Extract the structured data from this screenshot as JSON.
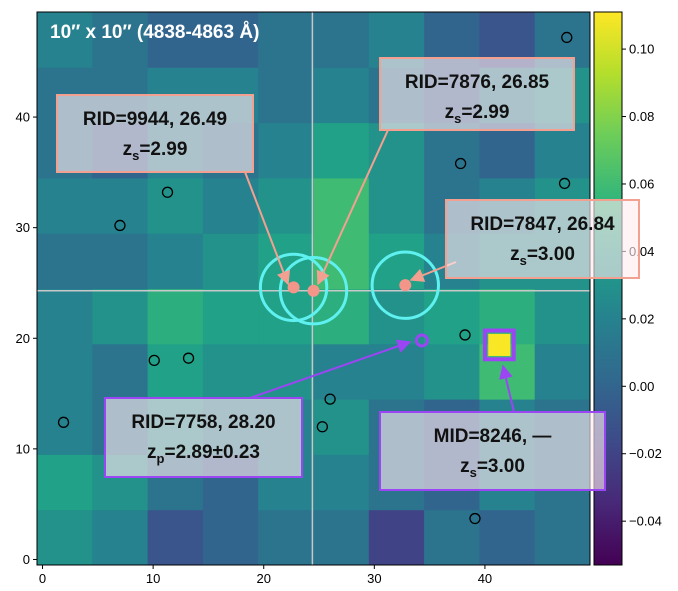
{
  "chart_data": {
    "type": "heatmap",
    "title": "10″ x 10″ (4838-4863 Å)",
    "xlim": [
      -0.5,
      49.5
    ],
    "ylim": [
      -0.5,
      49.5
    ],
    "xticks": [
      0,
      10,
      20,
      30,
      40
    ],
    "yticks": [
      0,
      10,
      20,
      30,
      40
    ],
    "clim": [
      -0.053,
      0.111
    ],
    "cticks": [
      {
        "value": 0.1,
        "label": "0.10"
      },
      0.08,
      0.06,
      0.04,
      0.02,
      {
        "value": 0,
        "label": "0.00"
      },
      {
        "value": -0.02,
        "label": "−0.02"
      },
      {
        "value": -0.04,
        "label": "−0.04"
      }
    ],
    "colormap": "viridis",
    "heatmap": {
      "x": [
        2,
        7,
        12,
        17,
        22,
        27,
        32,
        37,
        42,
        47
      ],
      "y": [
        2,
        7,
        12,
        17,
        22,
        27,
        32,
        37,
        42,
        47
      ],
      "z": [
        [
          0.03,
          0.02,
          -0.01,
          0.0,
          0.01,
          0.01,
          -0.02,
          0.01,
          0.0,
          0.01
        ],
        [
          0.04,
          0.03,
          0.01,
          0.0,
          0.02,
          0.02,
          0.01,
          0.0,
          0.02,
          0.01
        ],
        [
          0.02,
          0.01,
          0.03,
          0.02,
          0.02,
          0.03,
          0.01,
          0.0,
          0.02,
          0.01
        ],
        [
          0.02,
          0.01,
          0.04,
          0.03,
          0.03,
          0.02,
          0.02,
          0.03,
          0.06,
          0.02
        ],
        [
          0.02,
          0.03,
          0.05,
          0.04,
          0.04,
          0.05,
          0.03,
          0.04,
          0.05,
          0.03
        ],
        [
          0.01,
          0.01,
          0.02,
          0.03,
          0.04,
          0.06,
          0.04,
          0.02,
          0.03,
          0.03
        ],
        [
          0.02,
          0.02,
          0.03,
          0.02,
          0.03,
          0.06,
          0.03,
          0.01,
          0.02,
          0.03
        ],
        [
          0.01,
          0.0,
          0.02,
          0.01,
          0.02,
          0.04,
          0.03,
          0.01,
          0.0,
          0.02
        ],
        [
          0.01,
          0.01,
          0.02,
          0.02,
          0.01,
          0.02,
          0.01,
          0.0,
          0.02,
          0.03
        ],
        [
          0.02,
          0.01,
          0.0,
          0.0,
          0.01,
          0.01,
          0.02,
          0.0,
          -0.01,
          0.01
        ]
      ],
      "peak": {
        "x": 41.3,
        "y": 19.4,
        "z": 0.11
      }
    },
    "crosshair": {
      "x": 24.4,
      "y": 24.3,
      "color": "#c8c8c8"
    },
    "sources": {
      "color": "#000000",
      "x": [
        11.3,
        7.0,
        37.8,
        47.2,
        38.2,
        10.1,
        13.2,
        1.9,
        26.0,
        25.3,
        39.1,
        47.4
      ],
      "y": [
        33.2,
        30.2,
        35.8,
        34.0,
        20.3,
        18.0,
        18.2,
        12.4,
        14.5,
        12.0,
        3.7,
        47.2
      ]
    },
    "apertures": {
      "color": "#5ff0f0",
      "radius": 3,
      "x": [
        22.7,
        24.5,
        32.8
      ],
      "y": [
        24.6,
        24.3,
        24.8
      ]
    },
    "rid_points": {
      "color": "#f4958a",
      "x": [
        22.7,
        24.5,
        32.8
      ],
      "y": [
        24.6,
        24.3,
        24.8
      ]
    },
    "photz_point": {
      "color": "#9b45f5",
      "x": 34.3,
      "y": 19.8
    },
    "mid_box": {
      "color": "#9b45f5",
      "x": 41.3,
      "y": 19.4,
      "size": 2.6
    },
    "annotations": [
      {
        "line1": "RID=9944, 26.49",
        "z": "z",
        "sub": "s",
        "rest": "=2.99",
        "color": "#f4a090"
      },
      {
        "line1": "RID=7876, 26.85",
        "z": "z",
        "sub": "s",
        "rest": "=2.99",
        "color": "#f4a090"
      },
      {
        "line1": "RID=7847, 26.84",
        "z": "z",
        "sub": "s",
        "rest": "=3.00",
        "color": "#f4a090"
      },
      {
        "line1": "RID=7758, 28.20",
        "z": "z",
        "sub": "p",
        "rest": "=2.89±0.23",
        "color": "#9b45f5"
      },
      {
        "line1": "MID=8246, —",
        "z": "z",
        "sub": "s",
        "rest": "=3.00",
        "color": "#9b45f5"
      }
    ]
  }
}
